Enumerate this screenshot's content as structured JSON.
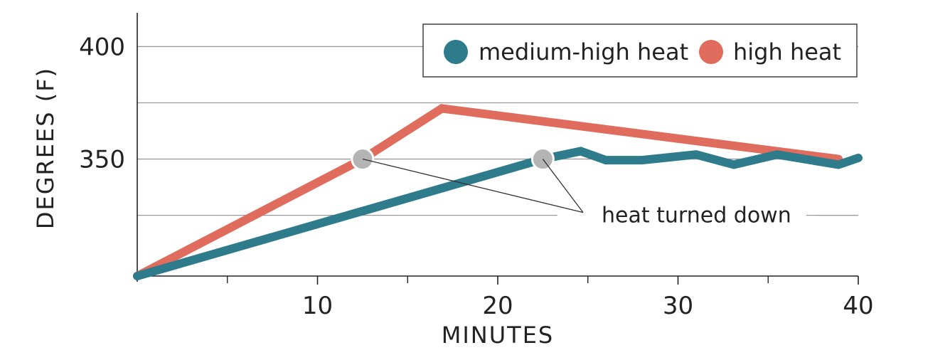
{
  "chart_data": {
    "type": "line",
    "title": "",
    "xlabel": "MINUTES",
    "ylabel": "DEGREES (F)",
    "xlim": [
      0,
      40
    ],
    "ylim": [
      298,
      415
    ],
    "x_ticks": [
      10,
      20,
      30,
      40
    ],
    "x_minor_ticks": [
      5,
      15,
      25,
      35
    ],
    "y_ticks": [
      350,
      400
    ],
    "y_gridlines": [
      325,
      350,
      375,
      400
    ],
    "grid": true,
    "legend_position": "top-right",
    "series": [
      {
        "name": "medium-high heat",
        "color": "#2e7b8c",
        "x": [
          0,
          22.5,
          24.6,
          26,
          28,
          31,
          33.1,
          35.5,
          38.9,
          40
        ],
        "y": [
          298,
          350,
          353.5,
          349.5,
          349.5,
          352,
          347.5,
          352,
          347.5,
          350.5
        ]
      },
      {
        "name": "high heat",
        "color": "#e06c5e",
        "x": [
          0,
          12.5,
          16.9,
          38.9
        ],
        "y": [
          298,
          350,
          372.5,
          350
        ]
      }
    ],
    "markers": [
      {
        "x": 12.5,
        "y": 350,
        "color": "#b4b4b4"
      },
      {
        "x": 22.5,
        "y": 350,
        "color": "#b4b4b4"
      }
    ],
    "annotation": {
      "text": "heat turned down",
      "x": 31,
      "y": 325
    }
  }
}
